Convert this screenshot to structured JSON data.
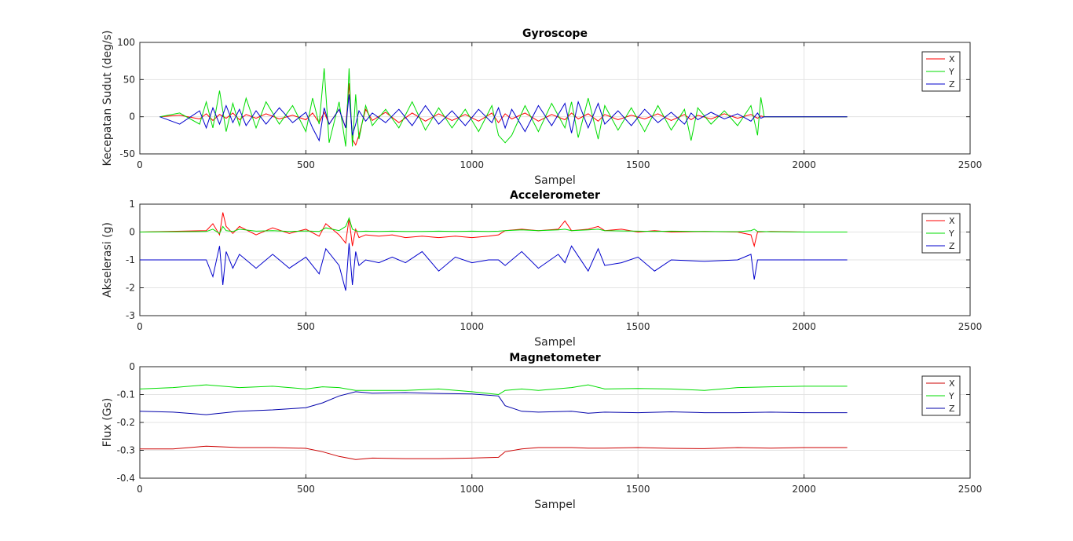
{
  "chart_data": [
    {
      "type": "line",
      "title": "Gyroscope",
      "xlabel": "Sampel",
      "ylabel": "Kecepatan Sudut (deg/s)",
      "xlim": [
        0,
        2500
      ],
      "ylim": [
        -50,
        100
      ],
      "xticks": [
        "0",
        "500",
        "1000",
        "1500",
        "2000",
        "2500"
      ],
      "yticks": [
        "-50",
        "0",
        "50",
        "100"
      ],
      "grid": true,
      "legend": "top-right",
      "x": [
        60,
        120,
        180,
        200,
        220,
        240,
        260,
        280,
        300,
        320,
        350,
        380,
        420,
        460,
        500,
        520,
        540,
        555,
        570,
        600,
        620,
        630,
        640,
        650,
        660,
        680,
        700,
        740,
        780,
        820,
        860,
        900,
        940,
        980,
        1020,
        1060,
        1080,
        1100,
        1120,
        1160,
        1200,
        1240,
        1280,
        1300,
        1320,
        1350,
        1380,
        1400,
        1440,
        1480,
        1520,
        1560,
        1600,
        1640,
        1660,
        1680,
        1720,
        1760,
        1800,
        1840,
        1860,
        1870,
        1880,
        2130
      ],
      "series": [
        {
          "name": "X",
          "color": "#ff0000",
          "values": [
            0,
            2,
            -3,
            4,
            -5,
            3,
            -2,
            5,
            -4,
            3,
            -2,
            4,
            -3,
            2,
            -4,
            5,
            -8,
            6,
            -10,
            10,
            -15,
            45,
            -30,
            -38,
            -25,
            10,
            -5,
            6,
            -8,
            5,
            -6,
            4,
            -5,
            3,
            -6,
            5,
            -8,
            4,
            -3,
            5,
            -6,
            3,
            -4,
            5,
            -3,
            4,
            -6,
            3,
            -4,
            2,
            -3,
            4,
            -5,
            3,
            -4,
            2,
            -3,
            4,
            -2,
            3,
            -2,
            1,
            0,
            0
          ]
        },
        {
          "name": "Y",
          "color": "#00dd00",
          "values": [
            0,
            5,
            -10,
            20,
            -15,
            35,
            -20,
            18,
            -12,
            25,
            -15,
            20,
            -10,
            15,
            -20,
            25,
            -10,
            65,
            -35,
            20,
            -40,
            65,
            -40,
            30,
            -30,
            15,
            -12,
            10,
            -15,
            20,
            -18,
            12,
            -15,
            10,
            -20,
            15,
            -25,
            -35,
            -25,
            15,
            -20,
            18,
            -15,
            20,
            -28,
            25,
            -30,
            15,
            -18,
            12,
            -20,
            15,
            -18,
            10,
            -32,
            12,
            -10,
            8,
            -12,
            15,
            -25,
            26,
            0,
            0
          ]
        },
        {
          "name": "Z",
          "color": "#0000cc",
          "values": [
            0,
            -10,
            8,
            -15,
            12,
            -10,
            15,
            -8,
            10,
            -12,
            8,
            -10,
            12,
            -8,
            6,
            -15,
            -32,
            12,
            -10,
            10,
            -15,
            30,
            -25,
            -10,
            8,
            -6,
            5,
            -8,
            10,
            -12,
            15,
            -10,
            8,
            -12,
            10,
            -8,
            12,
            -15,
            10,
            -20,
            15,
            -12,
            18,
            -22,
            20,
            -15,
            18,
            -10,
            8,
            -12,
            10,
            -8,
            6,
            -10,
            5,
            -4,
            6,
            -3,
            4,
            -6,
            5,
            -2,
            0,
            0
          ]
        }
      ]
    },
    {
      "type": "line",
      "title": "Accelerometer",
      "xlabel": "Sampel",
      "ylabel": "Akselerasi (g)",
      "xlim": [
        0,
        2500
      ],
      "ylim": [
        -3,
        1
      ],
      "xticks": [
        "0",
        "500",
        "1000",
        "1500",
        "2000",
        "2500"
      ],
      "yticks": [
        "-3",
        "-2",
        "-1",
        "0",
        "1"
      ],
      "grid": true,
      "legend": "top-right",
      "x": [
        0,
        200,
        220,
        240,
        250,
        260,
        280,
        300,
        350,
        400,
        450,
        500,
        540,
        560,
        600,
        620,
        630,
        640,
        650,
        660,
        680,
        720,
        760,
        800,
        850,
        900,
        950,
        1000,
        1050,
        1080,
        1100,
        1150,
        1200,
        1260,
        1280,
        1300,
        1350,
        1380,
        1400,
        1450,
        1500,
        1550,
        1600,
        1700,
        1800,
        1840,
        1850,
        1860,
        1900,
        2000,
        2130
      ],
      "series": [
        {
          "name": "X",
          "color": "#ff0000",
          "values": [
            0,
            0.05,
            0.3,
            -0.1,
            0.7,
            0.2,
            -0.05,
            0.2,
            -0.1,
            0.15,
            -0.05,
            0.1,
            -0.15,
            0.3,
            -0.1,
            -0.4,
            0.5,
            -0.5,
            0.1,
            -0.2,
            -0.1,
            -0.15,
            -0.1,
            -0.2,
            -0.15,
            -0.2,
            -0.15,
            -0.2,
            -0.15,
            -0.1,
            0.05,
            0.1,
            0.05,
            0.1,
            0.4,
            0.05,
            0.1,
            0.2,
            0.05,
            0.1,
            0,
            0.05,
            0,
            0.02,
            0,
            -0.1,
            -0.5,
            0,
            0.02,
            0,
            0
          ]
        },
        {
          "name": "Y",
          "color": "#00dd00",
          "values": [
            0,
            0.02,
            0.1,
            -0.05,
            0.2,
            0.05,
            0.02,
            0.1,
            0.03,
            0.05,
            0.02,
            0.04,
            0.02,
            0.15,
            0.05,
            0.2,
            0.5,
            0.1,
            0.05,
            0.02,
            0.03,
            0.02,
            0.03,
            0.02,
            0.02,
            0.03,
            0.02,
            0.03,
            0.02,
            0.03,
            0.05,
            0.08,
            0.05,
            0.08,
            0.1,
            0.05,
            0.08,
            0.1,
            0.05,
            0.04,
            0.03,
            0.02,
            0.03,
            0.02,
            0.01,
            0.05,
            0.1,
            0.02,
            0.01,
            0,
            0
          ]
        },
        {
          "name": "Z",
          "color": "#0000cc",
          "values": [
            -1,
            -1,
            -1.6,
            -0.5,
            -1.9,
            -0.7,
            -1.3,
            -0.8,
            -1.3,
            -0.8,
            -1.3,
            -0.9,
            -1.5,
            -0.6,
            -1.2,
            -2.1,
            -0.4,
            -1.9,
            -0.7,
            -1.2,
            -1,
            -1.1,
            -0.9,
            -1.1,
            -0.7,
            -1.4,
            -0.9,
            -1.1,
            -1,
            -1,
            -1.2,
            -0.7,
            -1.3,
            -0.8,
            -1.1,
            -0.5,
            -1.4,
            -0.6,
            -1.2,
            -1.1,
            -0.9,
            -1.4,
            -1,
            -1.05,
            -1,
            -0.8,
            -1.7,
            -1,
            -1,
            -1,
            -1
          ]
        }
      ]
    },
    {
      "type": "line",
      "title": "Magnetometer",
      "xlabel": "Sampel",
      "ylabel": "Flux (Gs)",
      "xlim": [
        0,
        2500
      ],
      "ylim": [
        -0.4,
        0
      ],
      "xticks": [
        "0",
        "500",
        "1000",
        "1500",
        "2000",
        "2500"
      ],
      "yticks": [
        "-0.4",
        "-0.3",
        "-0.2",
        "-0.1",
        "0"
      ],
      "grid": true,
      "legend": "top-right",
      "x": [
        0,
        100,
        200,
        300,
        400,
        500,
        550,
        600,
        650,
        700,
        800,
        900,
        1000,
        1080,
        1100,
        1150,
        1200,
        1300,
        1350,
        1400,
        1500,
        1600,
        1700,
        1800,
        1900,
        2000,
        2130
      ],
      "series": [
        {
          "name": "X",
          "color": "#cc0000",
          "values": [
            -0.295,
            -0.295,
            -0.285,
            -0.29,
            -0.29,
            -0.293,
            -0.305,
            -0.322,
            -0.333,
            -0.328,
            -0.33,
            -0.33,
            -0.328,
            -0.325,
            -0.305,
            -0.295,
            -0.29,
            -0.29,
            -0.292,
            -0.292,
            -0.29,
            -0.293,
            -0.294,
            -0.29,
            -0.292,
            -0.29,
            -0.29
          ]
        },
        {
          "name": "Y",
          "color": "#00dd00",
          "values": [
            -0.08,
            -0.075,
            -0.065,
            -0.075,
            -0.07,
            -0.08,
            -0.072,
            -0.075,
            -0.085,
            -0.085,
            -0.085,
            -0.08,
            -0.09,
            -0.1,
            -0.085,
            -0.08,
            -0.085,
            -0.075,
            -0.065,
            -0.08,
            -0.078,
            -0.08,
            -0.085,
            -0.075,
            -0.072,
            -0.07,
            -0.07
          ]
        },
        {
          "name": "Z",
          "color": "#0000aa",
          "values": [
            -0.16,
            -0.163,
            -0.172,
            -0.16,
            -0.155,
            -0.147,
            -0.13,
            -0.105,
            -0.09,
            -0.095,
            -0.093,
            -0.096,
            -0.098,
            -0.105,
            -0.14,
            -0.16,
            -0.163,
            -0.16,
            -0.167,
            -0.163,
            -0.165,
            -0.162,
            -0.165,
            -0.165,
            -0.163,
            -0.165,
            -0.165
          ]
        }
      ]
    }
  ]
}
